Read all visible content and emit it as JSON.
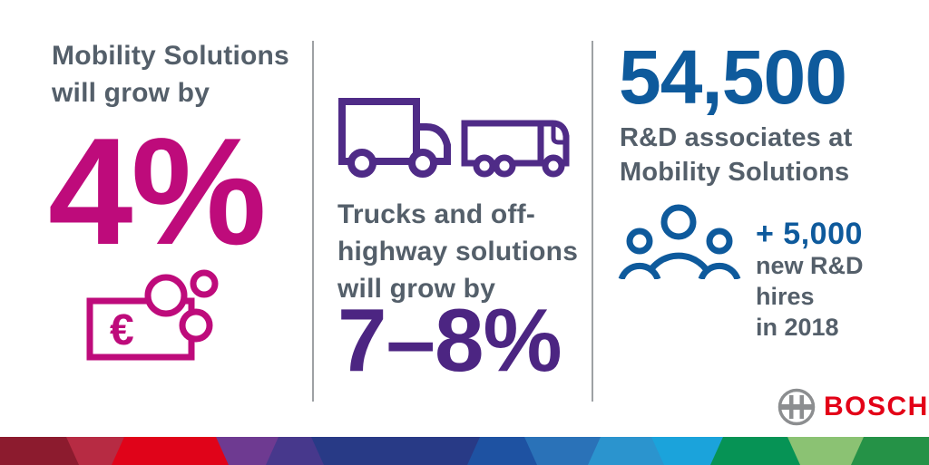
{
  "infographic": {
    "col1": {
      "heading_lines": [
        "Mobility Solutions",
        "will grow by"
      ],
      "value": "4%",
      "icon": "euro-banknote-and-coins-icon"
    },
    "col2": {
      "icon": "trucks-icon",
      "heading_lines": [
        "Trucks and off-",
        "highway solutions",
        "will grow by"
      ],
      "value": "7–8%"
    },
    "col3": {
      "value": "54,500",
      "caption_lines": [
        "R&D associates at",
        "Mobility Solutions"
      ],
      "icon": "people-group-icon",
      "plus_value": "+ 5,000",
      "plus_lines": [
        "new R&D",
        "hires",
        "in 2018"
      ]
    },
    "logo": {
      "text": "BOSCH",
      "icon": "bosch-armature-icon"
    },
    "colors": {
      "magenta": "#BE0B7B",
      "purple_icon": "#4F2B87",
      "purple_text": "#4C2582",
      "blue": "#0E5A9C",
      "slate": "#545F6A",
      "bosch_red": "#E30017",
      "divider": "#9EA1A4",
      "logo_gray": "#8C8E90"
    },
    "stripe": {
      "name": "bosch-supergraphic",
      "segments": [
        {
          "color": "#8C1B2E",
          "end": 80
        },
        {
          "color": "#B72B43",
          "end": 130
        },
        {
          "color": "#E00319",
          "end": 245
        },
        {
          "color": "#6E3A91",
          "end": 300
        },
        {
          "color": "#47388C",
          "end": 350
        },
        {
          "color": "#283A86",
          "end": 522
        },
        {
          "color": "#1E52A2",
          "end": 585
        },
        {
          "color": "#2A72B8",
          "end": 655
        },
        {
          "color": "#2B94CE",
          "end": 725
        },
        {
          "color": "#1BA3DB",
          "end": 790
        },
        {
          "color": "#069355",
          "end": 875
        },
        {
          "color": "#8BC273",
          "end": 945
        },
        {
          "color": "#259247",
          "end": 1024
        }
      ]
    }
  }
}
